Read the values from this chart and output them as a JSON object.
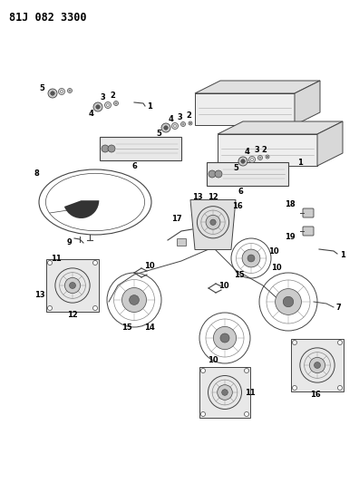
{
  "title": "81J 082 3300",
  "bg_color": "#ffffff",
  "fig_width": 3.96,
  "fig_height": 5.33,
  "dpi": 100,
  "line_color": "#444444",
  "light_color": "#aaaaaa",
  "mid_color": "#888888"
}
